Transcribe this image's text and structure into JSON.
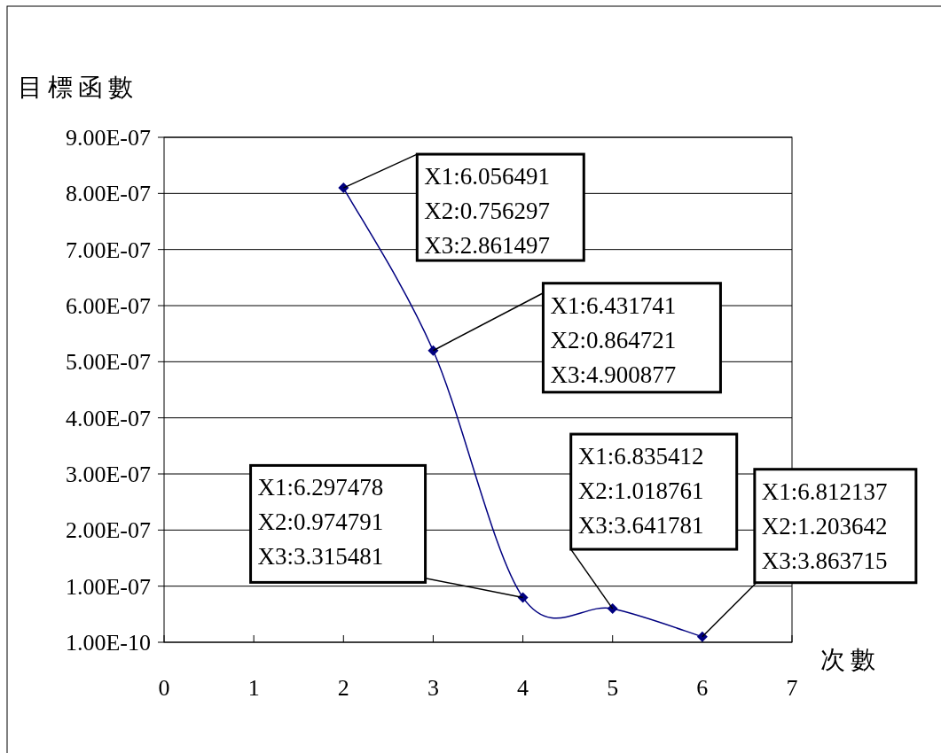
{
  "chart_data": {
    "type": "line",
    "xlabel": "次數",
    "ylabel": "目標函數",
    "x": [
      2,
      3,
      4,
      5,
      6
    ],
    "series": [
      {
        "color": "#000080",
        "values": [
          8.1e-07,
          5.2e-07,
          8e-08,
          6e-08,
          1e-08
        ]
      }
    ],
    "xlim": [
      0,
      7
    ],
    "xticks": [
      0,
      1,
      2,
      3,
      4,
      5,
      6,
      7
    ],
    "ylim": [
      1e-10,
      9.001e-07
    ],
    "yticks": [
      {
        "value": 1e-10,
        "label": "1.00E-10"
      },
      {
        "value": 1.001e-07,
        "label": "1.00E-07"
      },
      {
        "value": 2.001e-07,
        "label": "2.00E-07"
      },
      {
        "value": 3.001e-07,
        "label": "3.00E-07"
      },
      {
        "value": 4.001e-07,
        "label": "4.00E-07"
      },
      {
        "value": 5.001e-07,
        "label": "5.00E-07"
      },
      {
        "value": 6.001e-07,
        "label": "6.00E-07"
      },
      {
        "value": 7.001e-07,
        "label": "7.00E-07"
      },
      {
        "value": 8.001e-07,
        "label": "8.00E-07"
      },
      {
        "value": 9.001e-07,
        "label": "9.00E-07"
      }
    ],
    "grid": "y",
    "marker": "diamond",
    "line_style": "solid",
    "annotations": [
      {
        "text": "X1:6.056491\nX2:0.756297\nX3:2.861497",
        "x": 2,
        "y": 8.1e-07
      },
      {
        "text": "X1:6.431741\nX2:0.864721\nX3:4.900877",
        "x": 3,
        "y": 5.2e-07
      },
      {
        "text": "X1:6.297478\nX2:0.974791\nX3:3.315481",
        "x": 4,
        "y": 8e-08
      },
      {
        "text": "X1:6.835412\nX2:1.018761\nX3:3.641781",
        "x": 5,
        "y": 6e-08
      },
      {
        "text": "X1:6.812137\nX2:1.203642\nX3:3.863715",
        "x": 6,
        "y": 1e-08
      }
    ]
  }
}
